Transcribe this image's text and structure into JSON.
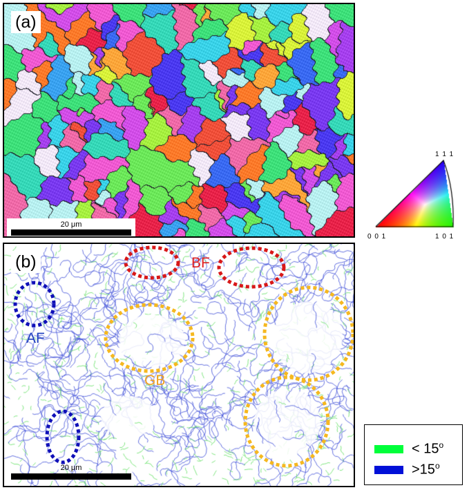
{
  "panel_a": {
    "label": "(a)",
    "scale_text": "20 μm",
    "description_colors": [
      "#e8234a",
      "#f0503a",
      "#ff7a2a",
      "#ffa63a",
      "#d9f23a",
      "#a6f040",
      "#6ce85a",
      "#3ee07a",
      "#36d8b8",
      "#3ad2e8",
      "#3aa2f0",
      "#3a6af2",
      "#4b3af0",
      "#7a3af0",
      "#a640ee",
      "#d24ee8",
      "#f05ad2",
      "#f06aa8",
      "#f2e8f8",
      "#b8f0f0"
    ]
  },
  "panel_b": {
    "label": "(b)",
    "scale_text": "20 μm",
    "annotations": [
      {
        "text": "BF",
        "color": "#e02020"
      },
      {
        "text": "AF",
        "color": "#1f3fbf"
      },
      {
        "text": "GB",
        "color": "#f0a020"
      }
    ],
    "boundary_colors": {
      "low": "#5ee05e",
      "high": "#3a4ad8"
    }
  },
  "ipf_key": {
    "label_top": "1 1 1",
    "label_left": "0 0 1",
    "label_right": "1 0 1"
  },
  "legend": {
    "items": [
      {
        "text": "< 15",
        "sup": "o",
        "color": "#00ff3a"
      },
      {
        "text": ">15",
        "sup": "o",
        "color": "#0010d8"
      }
    ]
  }
}
